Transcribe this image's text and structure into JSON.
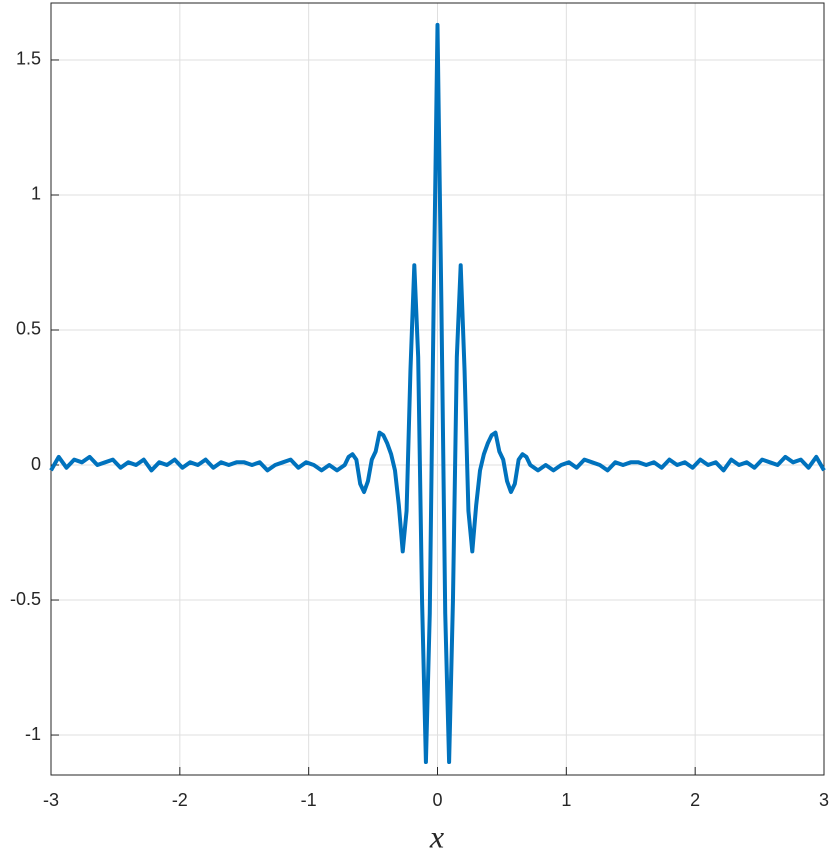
{
  "chart_data": {
    "type": "line",
    "xlabel": "x",
    "x": [
      -3.0,
      -2.94,
      -2.88,
      -2.82,
      -2.76,
      -2.7,
      -2.64,
      -2.58,
      -2.52,
      -2.46,
      -2.4,
      -2.34,
      -2.28,
      -2.22,
      -2.16,
      -2.1,
      -2.04,
      -1.98,
      -1.92,
      -1.86,
      -1.8,
      -1.74,
      -1.68,
      -1.62,
      -1.56,
      -1.5,
      -1.44,
      -1.38,
      -1.32,
      -1.26,
      -1.2,
      -1.14,
      -1.08,
      -1.02,
      -0.96,
      -0.9,
      -0.84,
      -0.78,
      -0.72,
      -0.69,
      -0.66,
      -0.63,
      -0.6,
      -0.57,
      -0.54,
      -0.51,
      -0.48,
      -0.45,
      -0.42,
      -0.39,
      -0.36,
      -0.33,
      -0.3,
      -0.27,
      -0.24,
      -0.21,
      -0.18,
      -0.15,
      -0.12,
      -0.09,
      -0.06,
      -0.03,
      0,
      0.03,
      0.06,
      0.09,
      0.12,
      0.15,
      0.18,
      0.21,
      0.24,
      0.27,
      0.3,
      0.33,
      0.36,
      0.39,
      0.42,
      0.45,
      0.48,
      0.51,
      0.54,
      0.57,
      0.6,
      0.63,
      0.66,
      0.69,
      0.72,
      0.78,
      0.84,
      0.9,
      0.96,
      1.02,
      1.08,
      1.14,
      1.2,
      1.26,
      1.32,
      1.38,
      1.44,
      1.5,
      1.56,
      1.62,
      1.68,
      1.74,
      1.8,
      1.86,
      1.92,
      1.98,
      2.04,
      2.1,
      2.16,
      2.22,
      2.28,
      2.34,
      2.4,
      2.46,
      2.52,
      2.58,
      2.64,
      2.7,
      2.76,
      2.82,
      2.88,
      2.94,
      3.0
    ],
    "values": [
      -0.02,
      0.03,
      -0.01,
      0.02,
      0.01,
      0.03,
      0.0,
      0.01,
      0.02,
      -0.01,
      0.01,
      0.0,
      0.02,
      -0.02,
      0.01,
      0.0,
      0.02,
      -0.01,
      0.01,
      0.0,
      0.02,
      -0.01,
      0.01,
      0.0,
      0.01,
      0.01,
      0.0,
      0.01,
      -0.02,
      0.0,
      0.01,
      0.02,
      -0.01,
      0.01,
      0.0,
      -0.02,
      0.0,
      -0.02,
      0.0,
      0.03,
      0.04,
      0.02,
      -0.07,
      -0.1,
      -0.06,
      0.02,
      0.05,
      0.12,
      0.11,
      0.08,
      0.04,
      -0.02,
      -0.15,
      -0.32,
      -0.17,
      0.35,
      0.74,
      0.4,
      -0.5,
      -1.1,
      -0.55,
      0.6,
      1.63,
      0.6,
      -0.55,
      -1.1,
      -0.5,
      0.4,
      0.74,
      0.35,
      -0.17,
      -0.32,
      -0.15,
      -0.02,
      0.04,
      0.08,
      0.11,
      0.12,
      0.05,
      0.02,
      -0.06,
      -0.1,
      -0.07,
      0.02,
      0.04,
      0.03,
      0.0,
      -0.02,
      0.0,
      -0.02,
      0.0,
      0.01,
      -0.01,
      0.02,
      0.01,
      0.0,
      -0.02,
      0.01,
      0.0,
      0.01,
      0.01,
      0.0,
      0.01,
      -0.01,
      0.02,
      0.0,
      0.01,
      -0.01,
      0.02,
      0.0,
      0.01,
      -0.02,
      0.02,
      0.0,
      0.01,
      -0.01,
      0.02,
      0.01,
      0.0,
      0.03,
      0.01,
      0.02,
      -0.01,
      0.03,
      -0.02
    ],
    "color": "#0072BD",
    "xlim": [
      -3,
      3
    ],
    "xticks": [
      -3,
      -2,
      -1,
      0,
      1,
      2,
      3
    ],
    "ylim": [
      -1.148,
      1.711
    ],
    "yticks": [
      -1,
      -0.5,
      0,
      0.5,
      1,
      1.5
    ],
    "grid": true
  }
}
